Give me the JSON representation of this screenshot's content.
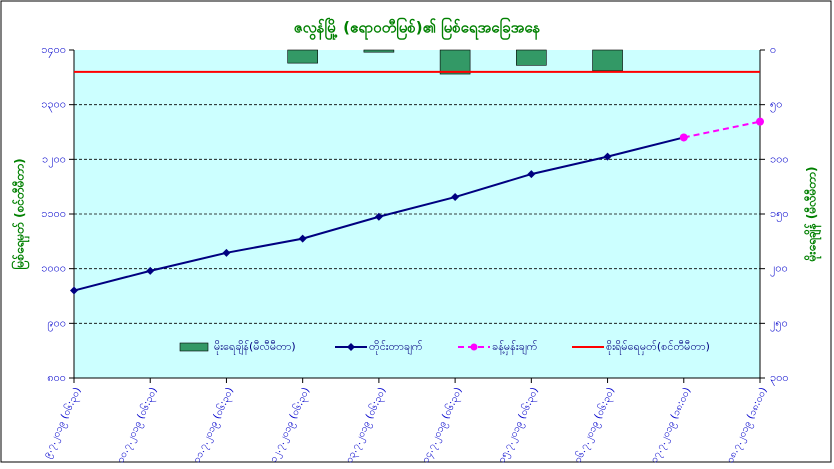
{
  "chart_data": {
    "type": "line",
    "title": "ဇလွန်မြို့ (ဧရာဝတီမြစ်)၏ မြစ်ရေအခြေအနေ",
    "y_label": "မြစ်ရေမှတ် (စင်တီမီတာ)",
    "y2_label": "မိုးရေချိန် (မီလီမီတာ)",
    "categories": [
      "၉.၇.၂၀၁၉ (၀၆:၃၀)",
      "၁၀.၇.၂၀၁၉ (၀၆:၃၀)",
      "၁၁.၇.၂၀၁၉ (၀၆:၃၀)",
      "၁၂.၇.၂၀၁၉ (၀၆:၃၀)",
      "၁၃.၇.၂၀၁၉ (၀၆:၃၀)",
      "၁၄.၇.၂၀၁၉ (၀၆:၃၀)",
      "၁၅.၇.၂၀၁၉ (၀၆:၃၀)",
      "၁၆.၇.၂၀၁၉ (၀၆:၃၀)",
      "၁၇.၇.၂၀၁၉ (၁၈:၀၀)",
      "၁၈.၇.၂၀၁၉ (၁၈:၀၀)"
    ],
    "series": [
      {
        "name": "မိုးရေချိန်(မီလီမီတာ)",
        "type": "bar",
        "axis": "y2",
        "color": "#339966",
        "values": [
          null,
          null,
          null,
          12,
          2,
          22,
          14,
          19,
          null,
          null
        ]
      },
      {
        "name": "တိုင်းတာချက်",
        "type": "line",
        "color": "#000080",
        "values": [
          960,
          996,
          1029,
          1055,
          1095,
          1131,
          1173,
          1205,
          1240,
          null
        ]
      },
      {
        "name": "ခန့်မှန်းချက်",
        "type": "line",
        "dashed": true,
        "color": "#ff00ff",
        "values": [
          null,
          null,
          null,
          null,
          null,
          null,
          null,
          null,
          1240,
          1269
        ]
      }
    ],
    "danger": {
      "name": "စိုးရိမ်ရေမှတ်(စင်တီမီတာ)",
      "color": "#ff0000",
      "value": 1360
    },
    "ylim": [
      800,
      1400
    ],
    "yticks": [
      {
        "value": 800,
        "label": "၈၀၀"
      },
      {
        "value": 900,
        "label": "၉၀၀"
      },
      {
        "value": 1000,
        "label": "၁၀၀၀"
      },
      {
        "value": 1100,
        "label": "၁၁၀၀"
      },
      {
        "value": 1200,
        "label": "၁၂၀၀"
      },
      {
        "value": 1300,
        "label": "၁၃၀၀"
      },
      {
        "value": 1400,
        "label": "၁၄၀၀"
      }
    ],
    "y2lim": [
      300,
      0
    ],
    "y2ticks": [
      {
        "value": 0,
        "label": "၀"
      },
      {
        "value": 50,
        "label": "၅၀"
      },
      {
        "value": 100,
        "label": "၁၀၀"
      },
      {
        "value": 150,
        "label": "၁၅၀"
      },
      {
        "value": 200,
        "label": "၂၀၀"
      },
      {
        "value": 250,
        "label": "၂၅၀"
      },
      {
        "value": 300,
        "label": "၃၀၀"
      }
    ],
    "grid": true
  }
}
